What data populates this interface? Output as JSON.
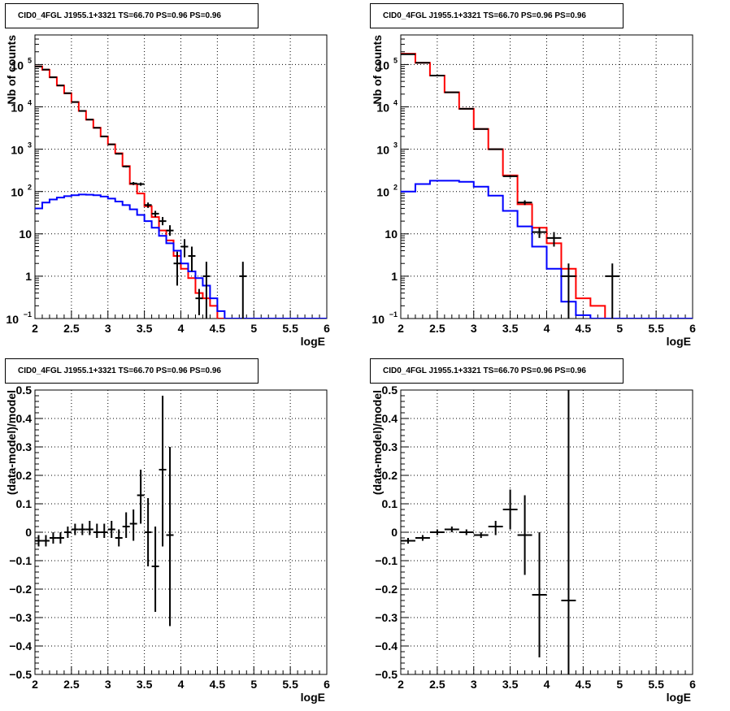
{
  "chart_data": [
    {
      "type": "histogram",
      "title": "CID0_4FGL J1955.1+3321 TS=66.70 PS=0.96 PS=0.96",
      "xlabel": "logE",
      "ylabel": "Nb of counts",
      "xlim": [
        2,
        6
      ],
      "ylim": [
        0.1,
        500000
      ],
      "yscale": "log",
      "grid": true,
      "x_ticks": [
        "2",
        "2.5",
        "3",
        "3.5",
        "4",
        "4.5",
        "5",
        "5.5",
        "6"
      ],
      "y_ticks": [
        {
          "v": 0.1,
          "base": "10",
          "exp": "−1"
        },
        {
          "v": 1,
          "label": "1"
        },
        {
          "v": 10,
          "label": "10"
        },
        {
          "v": 100,
          "base": "10",
          "exp": "2"
        },
        {
          "v": 1000,
          "base": "10",
          "exp": "3"
        },
        {
          "v": 10000,
          "base": "10",
          "exp": "4"
        },
        {
          "v": 100000,
          "base": "10",
          "exp": "5"
        }
      ],
      "bin_edges": [
        2.0,
        2.1,
        2.2,
        2.3,
        2.4,
        2.5,
        2.6,
        2.7,
        2.8,
        2.9,
        3.0,
        3.1,
        3.2,
        3.3,
        3.4,
        3.5,
        3.6,
        3.7,
        3.8,
        3.9,
        4.0,
        4.1,
        4.2,
        4.3,
        4.4,
        4.5,
        4.6,
        4.7,
        4.8,
        4.9,
        5.0,
        5.1,
        5.2,
        5.3,
        5.4,
        5.5,
        5.6,
        5.7,
        5.8,
        5.9,
        6.0
      ],
      "series": [
        {
          "name": "",
          "color": "#ff0000",
          "style": "step",
          "values": [
            90000,
            75000,
            50000,
            32000,
            21000,
            13000,
            8000,
            5000,
            3200,
            2000,
            1300,
            800,
            400,
            150,
            90,
            45,
            25,
            12,
            7,
            3,
            1.5,
            0.9,
            0.4,
            0.3,
            0.2,
            0.09,
            0.09,
            0.09,
            0.09,
            0.09,
            0.09,
            0.09,
            0.09,
            0.09,
            0.09,
            0.09,
            0.09,
            0.09,
            0.09,
            0.09
          ]
        },
        {
          "name": "",
          "color": "#0000ff",
          "style": "step",
          "values": [
            40,
            55,
            65,
            72,
            78,
            82,
            85,
            84,
            82,
            76,
            68,
            58,
            48,
            38,
            28,
            20,
            14,
            9,
            6,
            4,
            2,
            1.3,
            0.9,
            0.6,
            0.3,
            0.15,
            0.09,
            0.09,
            0.09,
            0.09,
            0.09,
            0.09,
            0.09,
            0.09,
            0.09,
            0.09,
            0.09,
            0.09,
            0.09,
            0.09
          ]
        }
      ],
      "points": [
        {
          "x": 2.05,
          "y": 90000,
          "lo": 88000,
          "hi": 92000
        },
        {
          "x": 2.15,
          "y": 76000,
          "lo": 74000,
          "hi": 78000
        },
        {
          "x": 2.25,
          "y": 50000,
          "lo": 49000,
          "hi": 51000
        },
        {
          "x": 2.35,
          "y": 32000,
          "lo": 31000,
          "hi": 33000
        },
        {
          "x": 2.45,
          "y": 21000,
          "lo": 20500,
          "hi": 21500
        },
        {
          "x": 2.55,
          "y": 13000,
          "lo": 12700,
          "hi": 13300
        },
        {
          "x": 2.65,
          "y": 8000,
          "lo": 7800,
          "hi": 8200
        },
        {
          "x": 2.75,
          "y": 5000,
          "lo": 4850,
          "hi": 5150
        },
        {
          "x": 2.85,
          "y": 3200,
          "lo": 3100,
          "hi": 3300
        },
        {
          "x": 2.95,
          "y": 2000,
          "lo": 1950,
          "hi": 2050
        },
        {
          "x": 3.05,
          "y": 1300,
          "lo": 1260,
          "hi": 1340
        },
        {
          "x": 3.15,
          "y": 780,
          "lo": 750,
          "hi": 810
        },
        {
          "x": 3.25,
          "y": 390,
          "lo": 370,
          "hi": 410
        },
        {
          "x": 3.35,
          "y": 155,
          "lo": 142,
          "hi": 168
        },
        {
          "x": 3.45,
          "y": 150,
          "lo": 137,
          "hi": 163
        },
        {
          "x": 3.55,
          "y": 48,
          "lo": 41,
          "hi": 55
        },
        {
          "x": 3.65,
          "y": 30,
          "lo": 25,
          "hi": 35
        },
        {
          "x": 3.75,
          "y": 20,
          "lo": 16,
          "hi": 25
        },
        {
          "x": 3.85,
          "y": 12,
          "lo": 9,
          "hi": 16
        },
        {
          "x": 3.95,
          "y": 2,
          "lo": 0.6,
          "hi": 3.8
        },
        {
          "x": 4.05,
          "y": 5,
          "lo": 2.8,
          "hi": 7.5
        },
        {
          "x": 4.15,
          "y": 3,
          "lo": 1.3,
          "hi": 5
        },
        {
          "x": 4.25,
          "y": 0.3,
          "lo": 0.12,
          "hi": 0.5
        },
        {
          "x": 4.35,
          "y": 1,
          "lo": 0.1,
          "hi": 2.2
        },
        {
          "x": 4.85,
          "y": 1,
          "lo": 0.1,
          "hi": 2.2
        }
      ]
    },
    {
      "type": "histogram",
      "title": "CID0_4FGL J1955.1+3321 TS=66.70 PS=0.96 PS=0.96",
      "xlabel": "logE",
      "ylabel": "Nb of counts",
      "xlim": [
        2,
        6
      ],
      "ylim": [
        0.1,
        500000
      ],
      "yscale": "log",
      "grid": true,
      "x_ticks": [
        "2",
        "2.5",
        "3",
        "3.5",
        "4",
        "4.5",
        "5",
        "5.5",
        "6"
      ],
      "y_ticks": [
        {
          "v": 0.1,
          "base": "10",
          "exp": "−1"
        },
        {
          "v": 1,
          "label": "1"
        },
        {
          "v": 10,
          "label": "10"
        },
        {
          "v": 100,
          "base": "10",
          "exp": "2"
        },
        {
          "v": 1000,
          "base": "10",
          "exp": "3"
        },
        {
          "v": 10000,
          "base": "10",
          "exp": "4"
        },
        {
          "v": 100000,
          "base": "10",
          "exp": "5"
        }
      ],
      "bin_edges": [
        2.0,
        2.2,
        2.4,
        2.6,
        2.8,
        3.0,
        3.2,
        3.4,
        3.6,
        3.8,
        4.0,
        4.2,
        4.4,
        4.6,
        4.8,
        5.0,
        5.2,
        5.4,
        5.6,
        5.8,
        6.0
      ],
      "series": [
        {
          "name": "",
          "color": "#ff0000",
          "style": "step",
          "values": [
            180000,
            110000,
            55000,
            22000,
            9000,
            3000,
            1000,
            240,
            50,
            14,
            6,
            1.5,
            0.3,
            0.2,
            0.09,
            0.09,
            0.09,
            0.09,
            0.09,
            0.09
          ]
        },
        {
          "name": "",
          "color": "#0000ff",
          "style": "step",
          "values": [
            100,
            150,
            180,
            180,
            170,
            130,
            80,
            35,
            15,
            5,
            1.5,
            0.25,
            0.12,
            0.09,
            0.09,
            0.09,
            0.09,
            0.09,
            0.09,
            0.09
          ]
        }
      ],
      "points": [
        {
          "x": 2.1,
          "y": 175000,
          "lo": 172000,
          "hi": 178000
        },
        {
          "x": 2.3,
          "y": 110000,
          "lo": 108000,
          "hi": 112000
        },
        {
          "x": 2.5,
          "y": 55000,
          "lo": 54000,
          "hi": 56000
        },
        {
          "x": 2.7,
          "y": 22000,
          "lo": 21600,
          "hi": 22400
        },
        {
          "x": 2.9,
          "y": 9000,
          "lo": 8800,
          "hi": 9200
        },
        {
          "x": 3.1,
          "y": 3000,
          "lo": 2900,
          "hi": 3100
        },
        {
          "x": 3.3,
          "y": 1000,
          "lo": 970,
          "hi": 1030
        },
        {
          "x": 3.5,
          "y": 230,
          "lo": 215,
          "hi": 245
        },
        {
          "x": 3.7,
          "y": 55,
          "lo": 48,
          "hi": 62
        },
        {
          "x": 3.9,
          "y": 11,
          "lo": 8,
          "hi": 14
        },
        {
          "x": 4.1,
          "y": 8,
          "lo": 5,
          "hi": 11
        },
        {
          "x": 4.3,
          "y": 1,
          "lo": 0.1,
          "hi": 2
        },
        {
          "x": 4.9,
          "y": 1,
          "lo": 0.1,
          "hi": 2
        }
      ]
    },
    {
      "type": "scatter",
      "title": "CID0_4FGL J1955.1+3321 TS=66.70 PS=0.96 PS=0.96",
      "xlabel": "logE",
      "ylabel": "(data-model)/model",
      "xlim": [
        2,
        6
      ],
      "ylim": [
        -0.5,
        0.5
      ],
      "grid": true,
      "x_ticks": [
        "2",
        "2.5",
        "3",
        "3.5",
        "4",
        "4.5",
        "5",
        "5.5",
        "6"
      ],
      "y_ticks": [
        "−0.5",
        "−0.4",
        "−0.3",
        "−0.2",
        "−0.1",
        "0",
        "0.1",
        "0.2",
        "0.3",
        "0.4",
        "0.5"
      ],
      "xerr": 0.05,
      "points": [
        {
          "x": 2.05,
          "y": -0.03,
          "lo": -0.05,
          "hi": -0.01
        },
        {
          "x": 2.15,
          "y": -0.03,
          "lo": -0.05,
          "hi": -0.01
        },
        {
          "x": 2.25,
          "y": -0.02,
          "lo": -0.04,
          "hi": 0.0
        },
        {
          "x": 2.35,
          "y": -0.02,
          "lo": -0.04,
          "hi": 0.0
        },
        {
          "x": 2.45,
          "y": 0.0,
          "lo": -0.02,
          "hi": 0.02
        },
        {
          "x": 2.55,
          "y": 0.01,
          "lo": -0.01,
          "hi": 0.03
        },
        {
          "x": 2.65,
          "y": 0.01,
          "lo": -0.01,
          "hi": 0.03
        },
        {
          "x": 2.75,
          "y": 0.01,
          "lo": -0.01,
          "hi": 0.04
        },
        {
          "x": 2.85,
          "y": 0.0,
          "lo": -0.02,
          "hi": 0.03
        },
        {
          "x": 2.95,
          "y": 0.0,
          "lo": -0.02,
          "hi": 0.03
        },
        {
          "x": 3.05,
          "y": 0.01,
          "lo": -0.02,
          "hi": 0.04
        },
        {
          "x": 3.15,
          "y": -0.02,
          "lo": -0.05,
          "hi": 0.01
        },
        {
          "x": 3.25,
          "y": 0.02,
          "lo": -0.02,
          "hi": 0.07
        },
        {
          "x": 3.35,
          "y": 0.03,
          "lo": -0.03,
          "hi": 0.08
        },
        {
          "x": 3.45,
          "y": 0.13,
          "lo": 0.03,
          "hi": 0.22
        },
        {
          "x": 3.55,
          "y": 0.0,
          "lo": -0.12,
          "hi": 0.12
        },
        {
          "x": 3.65,
          "y": -0.12,
          "lo": -0.28,
          "hi": 0.02
        },
        {
          "x": 3.75,
          "y": 0.22,
          "lo": -0.05,
          "hi": 0.48
        },
        {
          "x": 3.85,
          "y": -0.01,
          "lo": -0.33,
          "hi": 0.3
        }
      ]
    },
    {
      "type": "scatter",
      "title": "CID0_4FGL J1955.1+3321 TS=66.70 PS=0.96 PS=0.96",
      "xlabel": "logE",
      "ylabel": "(data-model)/model",
      "xlim": [
        2,
        6
      ],
      "ylim": [
        -0.5,
        0.5
      ],
      "grid": true,
      "x_ticks": [
        "2",
        "2.5",
        "3",
        "3.5",
        "4",
        "4.5",
        "5",
        "5.5",
        "6"
      ],
      "y_ticks": [
        "−0.5",
        "−0.4",
        "−0.3",
        "−0.2",
        "−0.1",
        "0",
        "0.1",
        "0.2",
        "0.3",
        "0.4",
        "0.5"
      ],
      "xerr": 0.1,
      "points": [
        {
          "x": 2.1,
          "y": -0.03,
          "lo": -0.04,
          "hi": -0.02
        },
        {
          "x": 2.3,
          "y": -0.02,
          "lo": -0.03,
          "hi": -0.01
        },
        {
          "x": 2.5,
          "y": 0.0,
          "lo": -0.01,
          "hi": 0.01
        },
        {
          "x": 2.7,
          "y": 0.01,
          "lo": 0.0,
          "hi": 0.02
        },
        {
          "x": 2.9,
          "y": 0.0,
          "lo": -0.01,
          "hi": 0.01
        },
        {
          "x": 3.1,
          "y": -0.01,
          "lo": -0.02,
          "hi": 0.0
        },
        {
          "x": 3.3,
          "y": 0.02,
          "lo": -0.01,
          "hi": 0.04
        },
        {
          "x": 3.5,
          "y": 0.08,
          "lo": 0.01,
          "hi": 0.15
        },
        {
          "x": 3.7,
          "y": -0.01,
          "lo": -0.15,
          "hi": 0.13
        },
        {
          "x": 3.9,
          "y": -0.22,
          "lo": -0.44,
          "hi": 0.0
        },
        {
          "x": 4.3,
          "y": -0.24,
          "lo": -0.5,
          "hi": 0.5
        }
      ]
    }
  ]
}
